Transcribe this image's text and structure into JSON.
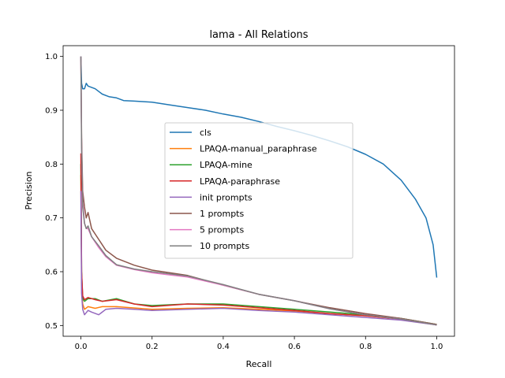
{
  "chart_data": {
    "type": "line",
    "title": "lama - All Relations",
    "xlabel": "Recall",
    "ylabel": "Precision",
    "xlim": [
      -0.05,
      1.05
    ],
    "ylim": [
      0.48,
      1.02
    ],
    "xticks": [
      "0.0",
      "0.2",
      "0.4",
      "0.6",
      "0.8",
      "1.0"
    ],
    "yticks": [
      "0.5",
      "0.6",
      "0.7",
      "0.8",
      "0.9",
      "1.0"
    ],
    "grid": false,
    "legend_position": "center",
    "series": [
      {
        "name": "cls",
        "color": "#1f77b4",
        "x": [
          0.0,
          0.002,
          0.005,
          0.01,
          0.015,
          0.02,
          0.04,
          0.06,
          0.08,
          0.1,
          0.12,
          0.15,
          0.2,
          0.25,
          0.3,
          0.35,
          0.4,
          0.45,
          0.5,
          0.55,
          0.6,
          0.65,
          0.7,
          0.75,
          0.8,
          0.85,
          0.9,
          0.94,
          0.97,
          0.99,
          1.0
        ],
        "y": [
          1.0,
          0.95,
          0.94,
          0.94,
          0.95,
          0.945,
          0.94,
          0.93,
          0.925,
          0.923,
          0.918,
          0.917,
          0.915,
          0.91,
          0.905,
          0.9,
          0.893,
          0.887,
          0.879,
          0.87,
          0.862,
          0.853,
          0.843,
          0.832,
          0.818,
          0.8,
          0.77,
          0.735,
          0.7,
          0.65,
          0.589
        ]
      },
      {
        "name": "LPAQA-manual_paraphrase",
        "color": "#ff7f0e",
        "x": [
          0.0,
          0.002,
          0.005,
          0.01,
          0.02,
          0.04,
          0.06,
          0.1,
          0.2,
          0.3,
          0.4,
          0.5,
          0.6,
          0.7,
          0.8,
          0.9,
          1.0
        ],
        "y": [
          0.78,
          0.58,
          0.54,
          0.53,
          0.535,
          0.532,
          0.535,
          0.535,
          0.53,
          0.532,
          0.533,
          0.53,
          0.527,
          0.522,
          0.518,
          0.512,
          0.502
        ]
      },
      {
        "name": "LPAQA-mine",
        "color": "#2ca02c",
        "x": [
          0.0,
          0.002,
          0.005,
          0.01,
          0.02,
          0.04,
          0.06,
          0.1,
          0.15,
          0.2,
          0.3,
          0.4,
          0.5,
          0.6,
          0.7,
          0.8,
          0.9,
          1.0
        ],
        "y": [
          0.8,
          0.6,
          0.55,
          0.545,
          0.55,
          0.55,
          0.545,
          0.55,
          0.54,
          0.537,
          0.54,
          0.54,
          0.535,
          0.53,
          0.525,
          0.52,
          0.513,
          0.502
        ]
      },
      {
        "name": "LPAQA-paraphrase",
        "color": "#d62728",
        "x": [
          0.0,
          0.002,
          0.005,
          0.01,
          0.02,
          0.04,
          0.06,
          0.1,
          0.15,
          0.2,
          0.3,
          0.4,
          0.5,
          0.6,
          0.7,
          0.8,
          0.9,
          1.0
        ],
        "y": [
          0.82,
          0.6,
          0.555,
          0.548,
          0.552,
          0.548,
          0.545,
          0.548,
          0.54,
          0.535,
          0.54,
          0.538,
          0.533,
          0.528,
          0.522,
          0.518,
          0.512,
          0.501
        ]
      },
      {
        "name": "init prompts",
        "color": "#9467bd",
        "x": [
          0.0,
          0.002,
          0.005,
          0.01,
          0.02,
          0.03,
          0.05,
          0.07,
          0.1,
          0.15,
          0.2,
          0.3,
          0.4,
          0.5,
          0.6,
          0.7,
          0.8,
          0.9,
          1.0
        ],
        "y": [
          0.75,
          0.56,
          0.53,
          0.52,
          0.528,
          0.525,
          0.52,
          0.53,
          0.532,
          0.53,
          0.528,
          0.53,
          0.532,
          0.528,
          0.525,
          0.52,
          0.515,
          0.51,
          0.501
        ]
      },
      {
        "name": "1 prompts",
        "color": "#8c564b",
        "x": [
          0.0,
          0.002,
          0.005,
          0.01,
          0.015,
          0.02,
          0.03,
          0.05,
          0.07,
          0.1,
          0.15,
          0.2,
          0.25,
          0.3,
          0.4,
          0.5,
          0.6,
          0.7,
          0.8,
          0.9,
          1.0
        ],
        "y": [
          1.0,
          0.85,
          0.75,
          0.72,
          0.7,
          0.71,
          0.68,
          0.66,
          0.64,
          0.625,
          0.612,
          0.603,
          0.598,
          0.593,
          0.575,
          0.558,
          0.546,
          0.533,
          0.522,
          0.513,
          0.502
        ]
      },
      {
        "name": "5 prompts",
        "color": "#e377c2",
        "x": [
          0.0,
          0.002,
          0.005,
          0.01,
          0.015,
          0.02,
          0.03,
          0.05,
          0.07,
          0.1,
          0.15,
          0.2,
          0.25,
          0.3,
          0.4,
          0.5,
          0.6,
          0.7,
          0.8,
          0.9,
          1.0
        ],
        "y": [
          1.0,
          0.83,
          0.73,
          0.69,
          0.68,
          0.68,
          0.665,
          0.645,
          0.628,
          0.612,
          0.604,
          0.598,
          0.594,
          0.59,
          0.575,
          0.558,
          0.546,
          0.531,
          0.52,
          0.512,
          0.501
        ]
      },
      {
        "name": "10 prompts",
        "color": "#7f7f7f",
        "x": [
          0.0,
          0.002,
          0.005,
          0.01,
          0.015,
          0.02,
          0.03,
          0.05,
          0.07,
          0.1,
          0.15,
          0.2,
          0.25,
          0.3,
          0.4,
          0.5,
          0.6,
          0.7,
          0.8,
          0.9,
          1.0
        ],
        "y": [
          1.0,
          0.83,
          0.72,
          0.69,
          0.68,
          0.685,
          0.665,
          0.648,
          0.63,
          0.613,
          0.605,
          0.6,
          0.596,
          0.592,
          0.576,
          0.558,
          0.546,
          0.531,
          0.52,
          0.512,
          0.501
        ]
      }
    ]
  }
}
